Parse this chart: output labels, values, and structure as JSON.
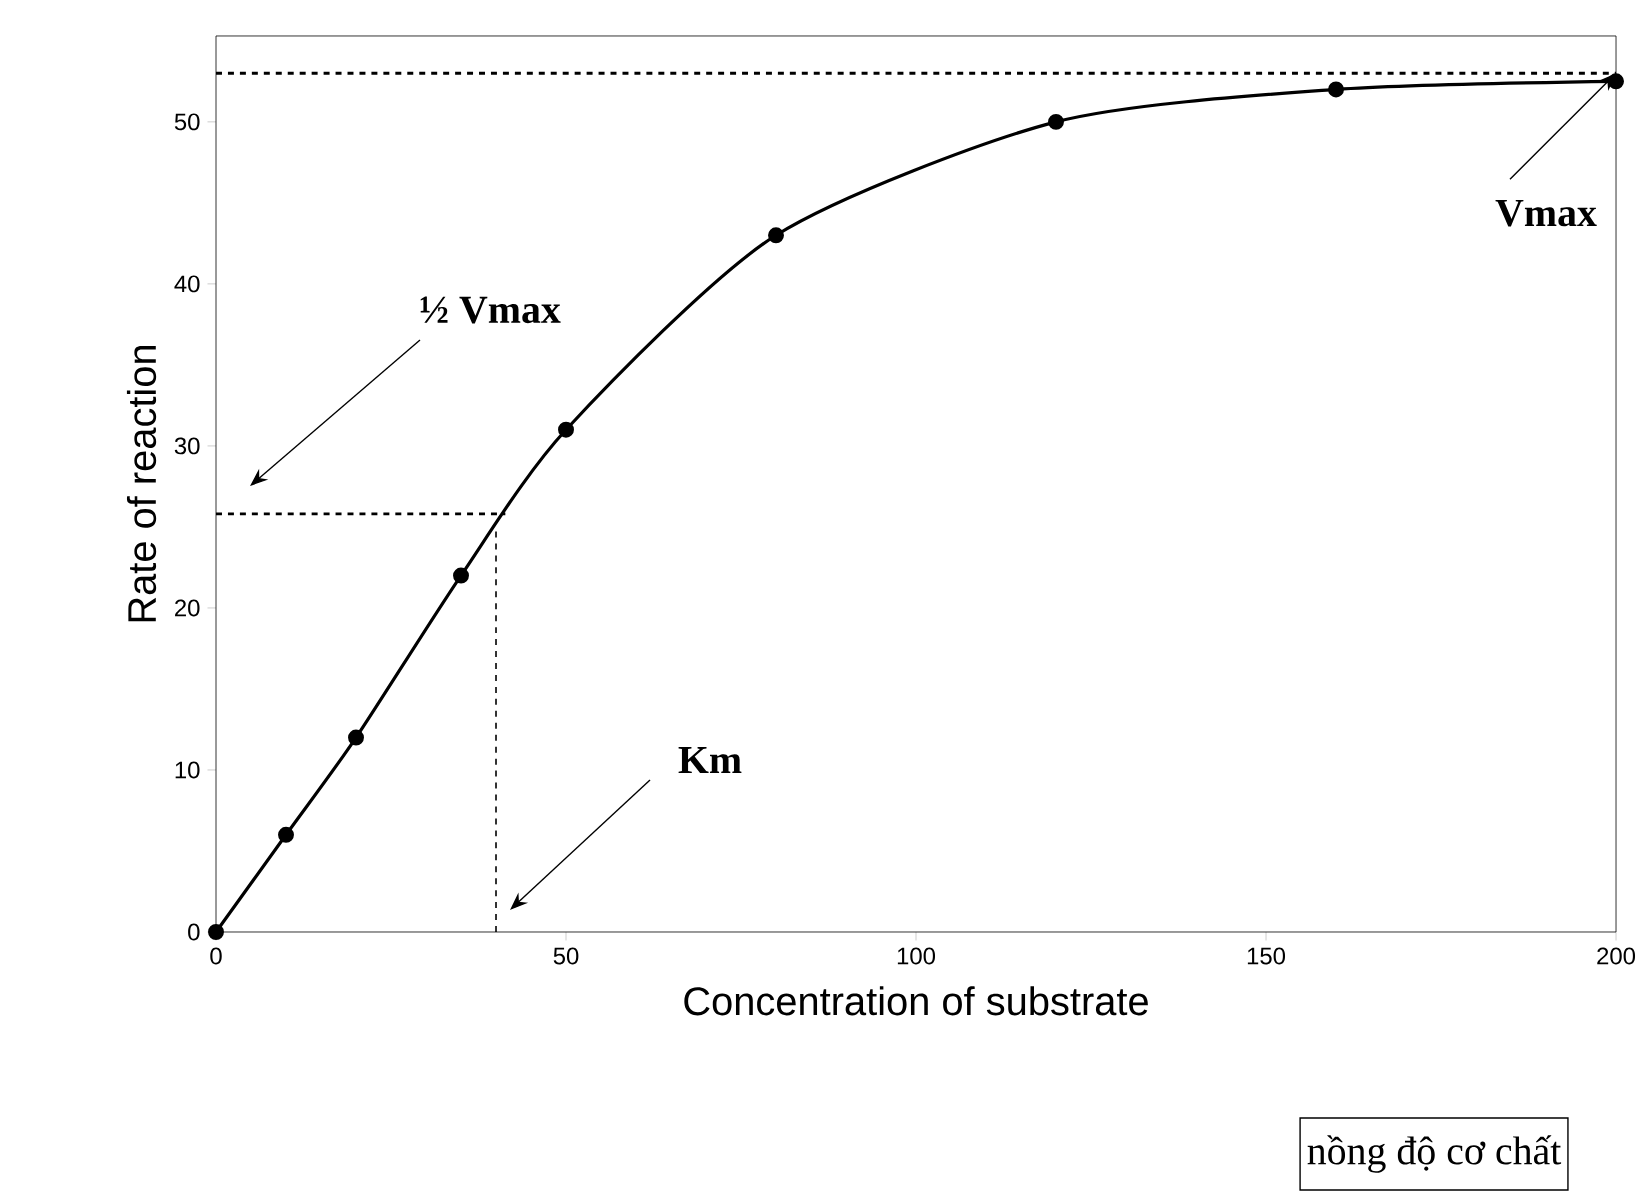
{
  "chart_data": {
    "type": "line",
    "xlabel": "Concentration of substrate",
    "ylabel": "Rate of reaction",
    "xlim": [
      0,
      200
    ],
    "ylim": [
      0,
      55.3
    ],
    "xticks": [
      0,
      50,
      100,
      150,
      200
    ],
    "yticks": [
      0,
      10,
      20,
      30,
      40,
      50
    ],
    "x": [
      0,
      10,
      20,
      35,
      50,
      80,
      120,
      160,
      200
    ],
    "series": [
      {
        "color": "#000000",
        "values": [
          0,
          6,
          12,
          22,
          31,
          43,
          50,
          52,
          52.5
        ]
      }
    ],
    "marker": "circle",
    "line_style": "solid",
    "ref_lines": [
      {
        "axis": "y",
        "value": 53,
        "line_style": "dashed",
        "color": "#000000"
      },
      {
        "axis": "y",
        "value": 25.8,
        "line_style": "dashed",
        "color": "#000000"
      },
      {
        "axis": "x",
        "value": 40,
        "line_style": "dashed",
        "color": "#000000"
      }
    ],
    "annotations": [
      {
        "text": "Vmax",
        "x": 200,
        "y": 53
      },
      "½ Vmax",
      "Km",
      "nồng độ cơ chất"
    ]
  }
}
